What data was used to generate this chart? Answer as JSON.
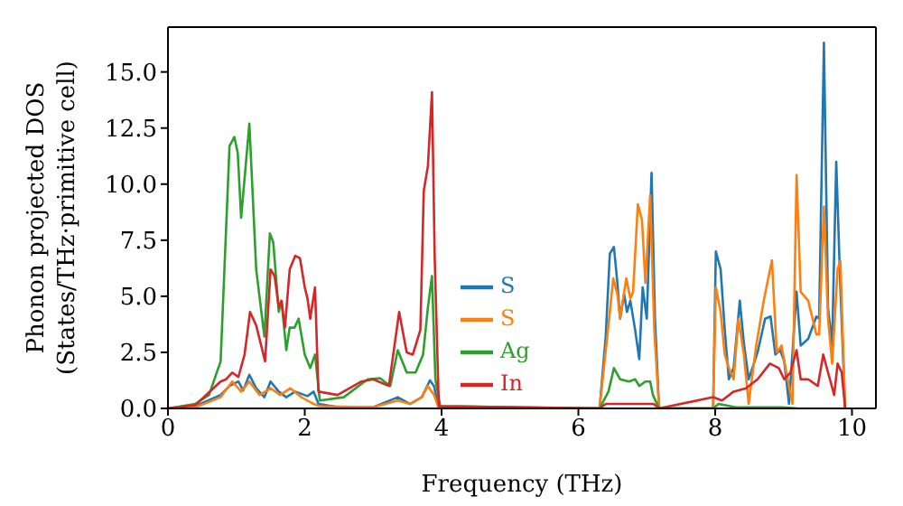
{
  "chart_data": {
    "type": "line",
    "xlabel": "Frequency (THz)",
    "ylabel": "Phonon projected DOS\n(States/THz·primitive cell)",
    "xlim": [
      0,
      10.35
    ],
    "xticks": [
      0,
      2,
      4,
      6,
      8,
      10
    ],
    "ylim": [
      0,
      17
    ],
    "yticks": [
      {
        "value": 0,
        "label": "0.0"
      },
      {
        "value": 2.5,
        "label": "2.5"
      },
      {
        "value": 5,
        "label": "5.0"
      },
      {
        "value": 7.5,
        "label": "7.5"
      },
      {
        "value": 10,
        "label": "10.0"
      },
      {
        "value": 12.5,
        "label": "12.5"
      },
      {
        "value": 15,
        "label": "15.0"
      }
    ],
    "legend": "center",
    "grid": false,
    "marker": "none",
    "line_style": "solid",
    "series": [
      {
        "name": "S",
        "color": "#1f77b4",
        "x": [
          0,
          0.4,
          0.77,
          0.9,
          1.03,
          1.1,
          1.19,
          1.29,
          1.41,
          1.5,
          1.62,
          1.73,
          1.86,
          2.04,
          2.13,
          2.2,
          2.5,
          3.0,
          3.36,
          3.54,
          3.71,
          3.83,
          3.89,
          3.96,
          6.31,
          6.4,
          6.46,
          6.52,
          6.57,
          6.61,
          6.67,
          6.71,
          6.76,
          6.83,
          6.89,
          6.94,
          7.0,
          7.07,
          7.12,
          7.18,
          7.97,
          8.01,
          8.08,
          8.14,
          8.2,
          8.27,
          8.36,
          8.42,
          8.49,
          8.62,
          8.73,
          8.81,
          8.88,
          8.95,
          9.01,
          9.08,
          9.19,
          9.25,
          9.36,
          9.48,
          9.52,
          9.59,
          9.65,
          9.71,
          9.77,
          9.83,
          9.9
        ],
        "values": [
          0,
          0.1,
          0.6,
          1.0,
          1.2,
          0.8,
          1.5,
          0.9,
          0.5,
          1.2,
          0.75,
          0.5,
          0.75,
          0.55,
          0.75,
          0.2,
          0.05,
          0.05,
          0.5,
          0.2,
          0.5,
          1.25,
          1.0,
          0,
          0,
          3.2,
          6.9,
          7.2,
          5.6,
          4.0,
          5.1,
          4.3,
          4.8,
          3.5,
          2.2,
          5.4,
          4.0,
          10.5,
          4.0,
          0,
          0,
          7.0,
          6.2,
          3.5,
          1.3,
          1.8,
          4.8,
          2.9,
          1.3,
          2.5,
          4.0,
          4.1,
          2.4,
          2.6,
          2.1,
          0.2,
          5.2,
          2.8,
          3.1,
          4.1,
          4.0,
          16.3,
          4.5,
          2.8,
          11.0,
          5.4,
          0
        ]
      },
      {
        "name": "S",
        "color": "#ff7f0e",
        "x": [
          0,
          0.4,
          0.77,
          0.94,
          1.07,
          1.19,
          1.34,
          1.5,
          1.64,
          1.79,
          1.95,
          2.13,
          2.22,
          3.0,
          3.36,
          3.54,
          3.71,
          3.8,
          3.89,
          3.96,
          6.31,
          6.44,
          6.51,
          6.57,
          6.61,
          6.7,
          6.76,
          6.8,
          6.87,
          6.93,
          6.98,
          7.05,
          7.11,
          7.18,
          7.97,
          8.01,
          8.08,
          8.14,
          8.2,
          8.27,
          8.34,
          8.42,
          8.49,
          8.6,
          8.71,
          8.83,
          8.9,
          8.97,
          9.06,
          9.13,
          9.19,
          9.25,
          9.36,
          9.48,
          9.52,
          9.59,
          9.65,
          9.71,
          9.79,
          9.83,
          9.9
        ],
        "values": [
          0,
          0.05,
          0.5,
          1.2,
          0.75,
          1.2,
          0.6,
          0.9,
          0.6,
          0.9,
          0.5,
          0.2,
          0.1,
          0.05,
          0.35,
          0.2,
          0.5,
          1.0,
          0.6,
          0,
          0,
          3.7,
          5.8,
          5.1,
          4.0,
          5.8,
          4.9,
          5.2,
          9.1,
          8.4,
          5.6,
          9.5,
          3.5,
          0,
          0,
          5.4,
          4.3,
          2.4,
          1.8,
          1.3,
          4.0,
          2.4,
          0.2,
          2.8,
          4.8,
          6.6,
          2.5,
          2.8,
          1.3,
          0.2,
          10.4,
          5.2,
          4.8,
          3.3,
          3.3,
          9.0,
          4.0,
          2.0,
          6.2,
          6.6,
          0
        ]
      },
      {
        "name": "Ag",
        "color": "#2ca02c",
        "x": [
          0,
          0.4,
          0.6,
          0.77,
          0.9,
          0.97,
          1.02,
          1.07,
          1.19,
          1.29,
          1.41,
          1.49,
          1.54,
          1.62,
          1.66,
          1.73,
          1.78,
          1.85,
          1.91,
          2.0,
          2.08,
          2.15,
          2.22,
          2.57,
          2.92,
          3.1,
          3.25,
          3.36,
          3.49,
          3.62,
          3.73,
          3.8,
          3.86,
          3.91,
          3.98,
          6.31,
          6.44,
          6.52,
          6.61,
          6.74,
          6.83,
          6.89,
          6.98,
          7.05,
          7.09,
          7.18,
          7.97,
          8.05,
          8.3,
          9.0,
          9.2
        ],
        "values": [
          0,
          0.2,
          0.6,
          2.1,
          11.7,
          12.1,
          11.4,
          8.5,
          12.7,
          6.2,
          3.2,
          7.8,
          7.4,
          4.3,
          4.8,
          2.6,
          3.6,
          3.6,
          4.0,
          2.4,
          1.8,
          2.4,
          0.35,
          0.5,
          1.3,
          1.35,
          1.0,
          2.6,
          1.6,
          1.6,
          2.4,
          4.5,
          5.9,
          1.3,
          0.1,
          0,
          0.75,
          1.8,
          1.3,
          1.2,
          1.3,
          1.0,
          1.2,
          1.2,
          0.6,
          0,
          0,
          0.2,
          0.05,
          0.05,
          0
        ]
      },
      {
        "name": "In",
        "color": "#d62728",
        "x": [
          0,
          0.4,
          0.77,
          0.85,
          0.94,
          1.03,
          1.12,
          1.2,
          1.29,
          1.42,
          1.5,
          1.56,
          1.62,
          1.66,
          1.71,
          1.78,
          1.86,
          1.93,
          2.0,
          2.04,
          2.08,
          2.15,
          2.2,
          2.48,
          2.83,
          3.0,
          3.23,
          3.38,
          3.49,
          3.58,
          3.69,
          3.74,
          3.8,
          3.86,
          3.9,
          3.96,
          6.31,
          6.4,
          7.1,
          7.18,
          7.97,
          8.1,
          8.27,
          8.45,
          8.62,
          8.8,
          8.93,
          9.01,
          9.1,
          9.19,
          9.25,
          9.36,
          9.5,
          9.58,
          9.65,
          9.74,
          9.79,
          9.85,
          9.9
        ],
        "values": [
          0,
          0.15,
          1.2,
          1.3,
          1.6,
          1.4,
          2.4,
          4.3,
          3.7,
          2.1,
          6.2,
          5.9,
          4.5,
          4.8,
          3.6,
          6.2,
          6.8,
          6.7,
          5.4,
          4.9,
          4.0,
          5.4,
          0.75,
          0.6,
          1.2,
          1.3,
          1.0,
          4.3,
          2.5,
          2.4,
          3.5,
          9.7,
          10.8,
          14.1,
          6.7,
          0.1,
          0,
          0.2,
          0.2,
          0,
          0.5,
          0.35,
          0.75,
          0.9,
          1.3,
          2.0,
          1.8,
          1.3,
          1.6,
          2.6,
          1.3,
          1.3,
          1.0,
          2.4,
          1.6,
          0.6,
          2.0,
          1.6,
          0
        ]
      }
    ]
  }
}
